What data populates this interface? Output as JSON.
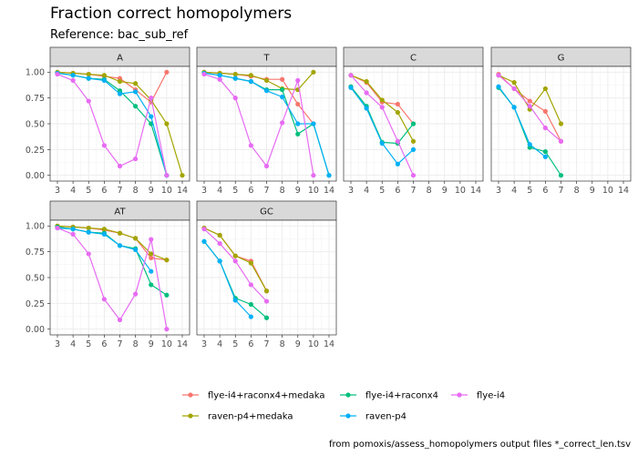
{
  "title": "Fraction correct homopolymers",
  "subtitle": "Reference: bac_sub_ref",
  "caption": "from pomoxis/assess_homopolymers output files *_correct_len.tsv",
  "chart_data": {
    "type": "line",
    "x_ticks": [
      3,
      4,
      5,
      6,
      7,
      8,
      9,
      10,
      14
    ],
    "y_ticks": [
      0.0,
      0.25,
      0.5,
      0.75,
      1.0
    ],
    "y_tick_labels": [
      "0.00",
      "0.25",
      "0.50",
      "0.75",
      "1.00"
    ],
    "ylim": [
      0,
      1
    ],
    "grid": true,
    "legend_position": "bottom",
    "series": [
      {
        "name": "flye-i4+raconx4+medaka",
        "color": "#F8766D"
      },
      {
        "name": "raven-p4+medaka",
        "color": "#A3A500"
      },
      {
        "name": "flye-i4+raconx4",
        "color": "#00BF7D"
      },
      {
        "name": "raven-p4",
        "color": "#00B0F6"
      },
      {
        "name": "flye-i4",
        "color": "#E76BF3"
      }
    ],
    "panels": [
      {
        "label": "A",
        "lines": [
          {
            "series": 0,
            "points": [
              [
                3,
                1.0
              ],
              [
                4,
                0.99
              ],
              [
                5,
                0.98
              ],
              [
                6,
                0.96
              ],
              [
                7,
                0.94
              ],
              [
                8,
                0.83
              ],
              [
                9,
                0.71
              ],
              [
                10,
                1.0
              ]
            ]
          },
          {
            "series": 1,
            "points": [
              [
                3,
                1.0
              ],
              [
                4,
                0.99
              ],
              [
                5,
                0.98
              ],
              [
                6,
                0.97
              ],
              [
                7,
                0.91
              ],
              [
                8,
                0.89
              ],
              [
                9,
                0.73
              ],
              [
                10,
                0.5
              ],
              [
                14,
                0.0
              ]
            ]
          },
          {
            "series": 2,
            "points": [
              [
                3,
                0.99
              ],
              [
                4,
                0.97
              ],
              [
                5,
                0.94
              ],
              [
                6,
                0.93
              ],
              [
                7,
                0.82
              ],
              [
                8,
                0.67
              ],
              [
                9,
                0.5
              ],
              [
                10,
                0.0
              ]
            ]
          },
          {
            "series": 3,
            "points": [
              [
                3,
                0.99
              ],
              [
                4,
                0.97
              ],
              [
                5,
                0.94
              ],
              [
                6,
                0.92
              ],
              [
                7,
                0.79
              ],
              [
                8,
                0.81
              ],
              [
                9,
                0.57
              ],
              [
                10,
                0.0
              ]
            ]
          },
          {
            "series": 4,
            "points": [
              [
                3,
                0.98
              ],
              [
                4,
                0.92
              ],
              [
                5,
                0.72
              ],
              [
                6,
                0.29
              ],
              [
                7,
                0.09
              ],
              [
                8,
                0.16
              ],
              [
                9,
                0.75
              ],
              [
                10,
                0.0
              ]
            ]
          }
        ]
      },
      {
        "label": "T",
        "lines": [
          {
            "series": 0,
            "points": [
              [
                3,
                1.0
              ],
              [
                4,
                0.99
              ],
              [
                5,
                0.98
              ],
              [
                6,
                0.96
              ],
              [
                7,
                0.93
              ],
              [
                8,
                0.93
              ],
              [
                9,
                0.69
              ],
              [
                10,
                0.5
              ]
            ]
          },
          {
            "series": 1,
            "points": [
              [
                3,
                1.0
              ],
              [
                4,
                0.99
              ],
              [
                5,
                0.98
              ],
              [
                6,
                0.97
              ],
              [
                7,
                0.92
              ],
              [
                8,
                0.84
              ],
              [
                9,
                0.83
              ],
              [
                10,
                1.0
              ]
            ]
          },
          {
            "series": 2,
            "points": [
              [
                3,
                0.99
              ],
              [
                4,
                0.97
              ],
              [
                5,
                0.94
              ],
              [
                6,
                0.91
              ],
              [
                7,
                0.83
              ],
              [
                8,
                0.83
              ],
              [
                9,
                0.4
              ],
              [
                10,
                0.5
              ],
              [
                14,
                0.0
              ]
            ]
          },
          {
            "series": 3,
            "points": [
              [
                3,
                0.99
              ],
              [
                4,
                0.97
              ],
              [
                5,
                0.94
              ],
              [
                6,
                0.91
              ],
              [
                7,
                0.82
              ],
              [
                8,
                0.76
              ],
              [
                9,
                0.5
              ],
              [
                10,
                0.5
              ],
              [
                14,
                0.0
              ]
            ]
          },
          {
            "series": 4,
            "points": [
              [
                3,
                0.98
              ],
              [
                4,
                0.93
              ],
              [
                5,
                0.75
              ],
              [
                6,
                0.29
              ],
              [
                7,
                0.09
              ],
              [
                8,
                0.51
              ],
              [
                9,
                0.92
              ],
              [
                10,
                0.0
              ]
            ]
          }
        ]
      },
      {
        "label": "C",
        "lines": [
          {
            "series": 0,
            "points": [
              [
                3,
                0.97
              ],
              [
                4,
                0.9
              ],
              [
                5,
                0.71
              ],
              [
                6,
                0.69
              ],
              [
                7,
                0.5
              ]
            ]
          },
          {
            "series": 1,
            "points": [
              [
                3,
                0.97
              ],
              [
                4,
                0.91
              ],
              [
                5,
                0.73
              ],
              [
                6,
                0.61
              ],
              [
                7,
                0.33
              ]
            ]
          },
          {
            "series": 2,
            "points": [
              [
                3,
                0.86
              ],
              [
                4,
                0.67
              ],
              [
                5,
                0.32
              ],
              [
                6,
                0.31
              ],
              [
                7,
                0.5
              ]
            ]
          },
          {
            "series": 3,
            "points": [
              [
                3,
                0.85
              ],
              [
                4,
                0.65
              ],
              [
                5,
                0.31
              ],
              [
                6,
                0.11
              ],
              [
                7,
                0.25
              ]
            ]
          },
          {
            "series": 4,
            "points": [
              [
                3,
                0.97
              ],
              [
                4,
                0.8
              ],
              [
                5,
                0.66
              ],
              [
                6,
                0.33
              ],
              [
                7,
                0.0
              ]
            ]
          }
        ]
      },
      {
        "label": "G",
        "lines": [
          {
            "series": 0,
            "points": [
              [
                3,
                0.98
              ],
              [
                4,
                0.84
              ],
              [
                5,
                0.72
              ],
              [
                6,
                0.62
              ],
              [
                7,
                0.33
              ]
            ]
          },
          {
            "series": 1,
            "points": [
              [
                3,
                0.97
              ],
              [
                4,
                0.9
              ],
              [
                5,
                0.64
              ],
              [
                6,
                0.84
              ],
              [
                7,
                0.5
              ]
            ]
          },
          {
            "series": 2,
            "points": [
              [
                3,
                0.85
              ],
              [
                4,
                0.66
              ],
              [
                5,
                0.27
              ],
              [
                6,
                0.23
              ],
              [
                7,
                0.0
              ]
            ]
          },
          {
            "series": 3,
            "points": [
              [
                3,
                0.86
              ],
              [
                4,
                0.66
              ],
              [
                5,
                0.3
              ],
              [
                6,
                0.18
              ]
            ]
          },
          {
            "series": 4,
            "points": [
              [
                3,
                0.97
              ],
              [
                4,
                0.84
              ],
              [
                5,
                0.67
              ],
              [
                6,
                0.46
              ],
              [
                7,
                0.33
              ]
            ]
          }
        ]
      },
      {
        "label": "AT",
        "lines": [
          {
            "series": 0,
            "points": [
              [
                3,
                1.0
              ],
              [
                4,
                0.99
              ],
              [
                5,
                0.98
              ],
              [
                6,
                0.96
              ],
              [
                7,
                0.93
              ],
              [
                8,
                0.88
              ],
              [
                9,
                0.69
              ],
              [
                10,
                0.67
              ]
            ]
          },
          {
            "series": 1,
            "points": [
              [
                3,
                1.0
              ],
              [
                4,
                0.99
              ],
              [
                5,
                0.98
              ],
              [
                6,
                0.97
              ],
              [
                7,
                0.93
              ],
              [
                8,
                0.88
              ],
              [
                9,
                0.73
              ],
              [
                10,
                0.67
              ]
            ]
          },
          {
            "series": 2,
            "points": [
              [
                3,
                0.99
              ],
              [
                4,
                0.97
              ],
              [
                5,
                0.94
              ],
              [
                6,
                0.93
              ],
              [
                7,
                0.81
              ],
              [
                8,
                0.78
              ],
              [
                9,
                0.43
              ],
              [
                10,
                0.33
              ]
            ]
          },
          {
            "series": 3,
            "points": [
              [
                3,
                0.98
              ],
              [
                4,
                0.97
              ],
              [
                5,
                0.94
              ],
              [
                6,
                0.92
              ],
              [
                7,
                0.81
              ],
              [
                8,
                0.77
              ],
              [
                9,
                0.56
              ]
            ]
          },
          {
            "series": 4,
            "points": [
              [
                3,
                0.98
              ],
              [
                4,
                0.92
              ],
              [
                5,
                0.73
              ],
              [
                6,
                0.29
              ],
              [
                7,
                0.09
              ],
              [
                8,
                0.34
              ],
              [
                9,
                0.87
              ],
              [
                10,
                0.0
              ]
            ]
          }
        ]
      },
      {
        "label": "GC",
        "lines": [
          {
            "series": 0,
            "points": [
              [
                3,
                0.98
              ],
              [
                4,
                0.91
              ],
              [
                5,
                0.71
              ],
              [
                6,
                0.66
              ],
              [
                7,
                0.37
              ]
            ]
          },
          {
            "series": 1,
            "points": [
              [
                3,
                0.98
              ],
              [
                4,
                0.91
              ],
              [
                5,
                0.71
              ],
              [
                6,
                0.64
              ],
              [
                7,
                0.37
              ]
            ]
          },
          {
            "series": 2,
            "points": [
              [
                3,
                0.85
              ],
              [
                4,
                0.66
              ],
              [
                5,
                0.3
              ],
              [
                6,
                0.24
              ],
              [
                7,
                0.11
              ]
            ]
          },
          {
            "series": 3,
            "points": [
              [
                3,
                0.85
              ],
              [
                4,
                0.66
              ],
              [
                5,
                0.28
              ],
              [
                6,
                0.12
              ]
            ]
          },
          {
            "series": 4,
            "points": [
              [
                3,
                0.97
              ],
              [
                4,
                0.83
              ],
              [
                5,
                0.66
              ],
              [
                6,
                0.43
              ],
              [
                7,
                0.27
              ]
            ]
          }
        ]
      }
    ]
  }
}
